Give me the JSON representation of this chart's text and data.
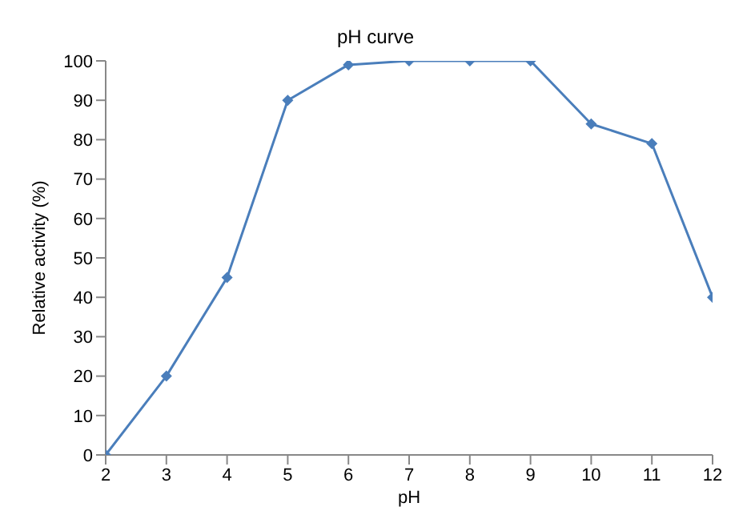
{
  "chart_data": {
    "type": "line",
    "title": "pH curve",
    "xlabel": "pH",
    "ylabel": "Relative activity (%)",
    "x": [
      2,
      3,
      4,
      5,
      6,
      7,
      8,
      9,
      10,
      11,
      12
    ],
    "series": [
      {
        "color": "#4a7ebb",
        "values": [
          0,
          20,
          45,
          90,
          99,
          100,
          100,
          100,
          84,
          79,
          40
        ]
      }
    ],
    "xlim": [
      2,
      12
    ],
    "xticks": [
      2,
      3,
      4,
      5,
      6,
      7,
      8,
      9,
      10,
      11,
      12
    ],
    "ylim": [
      0,
      100
    ],
    "yticks": [
      0,
      10,
      20,
      30,
      40,
      50,
      60,
      70,
      80,
      90,
      100
    ],
    "grid": false,
    "marker": "diamond",
    "line_style": "solid"
  }
}
